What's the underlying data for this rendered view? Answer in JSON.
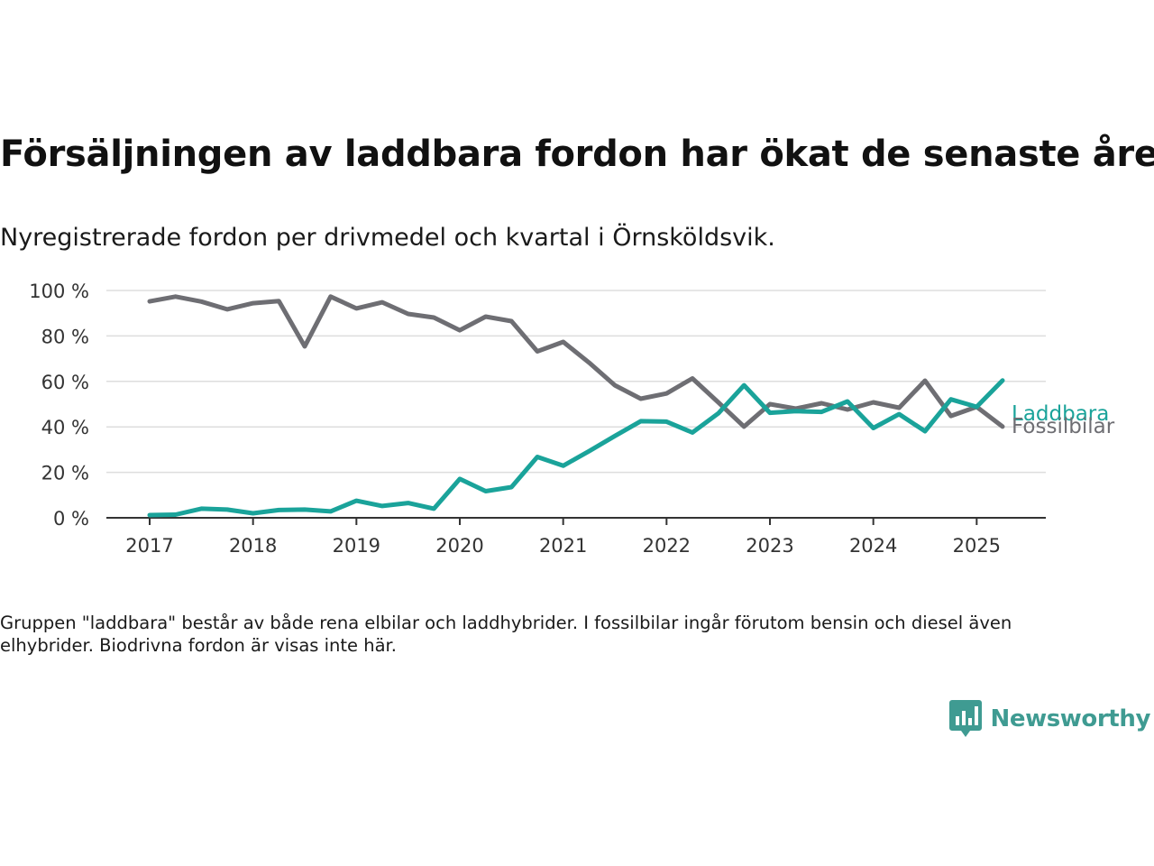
{
  "header": {
    "title": "Försäljningen av laddbara fordon har ökat de senaste åren",
    "subtitle": "Nyregistrerade fordon per drivmedel och kvartal i Örnsköldsvik."
  },
  "footer": {
    "note": "Gruppen \"laddbara\" består av både rena elbilar och laddhybrider. I fossilbilar ingår förutom bensin och diesel även elhybrider. Biodrivna fordon är visas inte här.",
    "brand": "Newsworthy"
  },
  "colors": {
    "laddbara": "#1aa39a",
    "fossil": "#6e6e73",
    "grid": "#dddddd",
    "axis": "#333333",
    "brand": "#3f9b92"
  },
  "chart_data": {
    "type": "line",
    "x_unit": "quarter",
    "x": [
      "2017 Q1",
      "2017 Q2",
      "2017 Q3",
      "2017 Q4",
      "2018 Q1",
      "2018 Q2",
      "2018 Q3",
      "2018 Q4",
      "2019 Q1",
      "2019 Q2",
      "2019 Q3",
      "2019 Q4",
      "2020 Q1",
      "2020 Q2",
      "2020 Q3",
      "2020 Q4",
      "2021 Q1",
      "2021 Q2",
      "2021 Q3",
      "2021 Q4",
      "2022 Q1",
      "2022 Q2",
      "2022 Q3",
      "2022 Q4",
      "2023 Q1",
      "2023 Q2",
      "2023 Q3",
      "2023 Q4",
      "2024 Q1",
      "2024 Q2",
      "2024 Q3",
      "2024 Q4",
      "2025 Q1",
      "2025 Q2"
    ],
    "x_ticks": [
      "2017",
      "2018",
      "2019",
      "2020",
      "2021",
      "2022",
      "2023",
      "2024",
      "2025"
    ],
    "y_ticks": [
      0,
      20,
      40,
      60,
      80,
      100
    ],
    "y_tick_labels": [
      "0 %",
      "20 %",
      "40 %",
      "60 %",
      "80 %",
      "100 %"
    ],
    "ylim": [
      0,
      100
    ],
    "grid": true,
    "legend": "end-of-line labels",
    "series": [
      {
        "key": "fossil",
        "name": "Fossilbilar",
        "values": [
          95.2,
          97.3,
          95.1,
          91.7,
          94.4,
          95.3,
          75.4,
          97.3,
          92.1,
          94.8,
          89.7,
          88.1,
          82.5,
          88.5,
          86.5,
          73.2,
          77.4,
          68.3,
          58.3,
          52.4,
          54.7,
          61.3,
          50.8,
          40.1,
          50.0,
          48.0,
          50.4,
          47.6,
          50.8,
          48.4,
          60.3,
          44.8,
          48.8,
          40.1
        ]
      },
      {
        "key": "laddbara",
        "name": "Laddbara",
        "values": [
          1.2,
          1.4,
          4.0,
          3.6,
          2.0,
          3.4,
          3.6,
          2.8,
          7.5,
          5.2,
          6.5,
          4.0,
          17.1,
          11.7,
          13.5,
          26.8,
          22.9,
          29.3,
          36.0,
          42.5,
          42.3,
          37.5,
          45.9,
          58.3,
          46.2,
          46.9,
          46.6,
          51.2,
          39.5,
          45.6,
          38.1,
          52.1,
          48.8,
          60.4
        ]
      }
    ]
  }
}
